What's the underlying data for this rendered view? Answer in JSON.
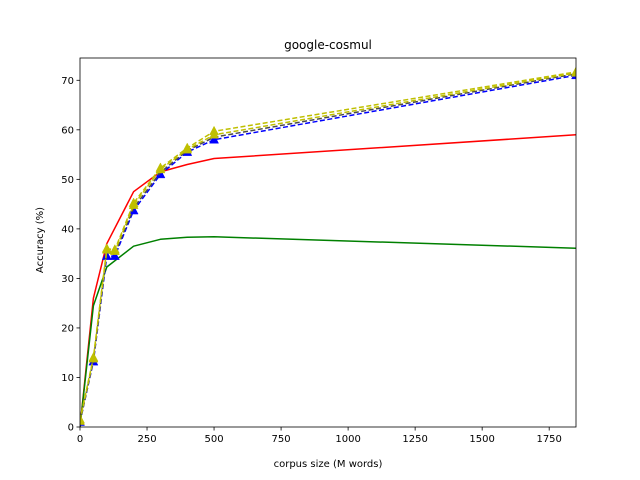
{
  "chart_data": {
    "type": "line",
    "title": "google-cosmul",
    "xlabel": "corpus size (M words)",
    "ylabel": "Accuracy (%)",
    "xlim": [
      0,
      1850
    ],
    "ylim": [
      0,
      74.5
    ],
    "xticks": [
      0,
      250,
      500,
      750,
      1000,
      1250,
      1500,
      1750
    ],
    "yticks": [
      0,
      10,
      20,
      30,
      40,
      50,
      60,
      70
    ],
    "grid": false,
    "series": [
      {
        "color": "#ff0000",
        "style": "solid",
        "marker": "none",
        "x": [
          0,
          50,
          100,
          200,
          300,
          400,
          500,
          1850
        ],
        "y": [
          0,
          26,
          37,
          47.5,
          51.5,
          53,
          54.2,
          59
        ]
      },
      {
        "color": "#008000",
        "style": "solid",
        "marker": "none",
        "x": [
          0,
          50,
          100,
          200,
          300,
          400,
          500,
          1850
        ],
        "y": [
          0,
          24.5,
          32.3,
          36.5,
          37.9,
          38.3,
          38.4,
          36.1
        ]
      },
      {
        "color": "#0000ff",
        "style": "dashed",
        "marker": "triangle",
        "x": [
          0,
          50,
          100,
          130,
          200,
          300,
          400,
          500,
          1850
        ],
        "y": [
          1,
          13.2,
          34.5,
          34.5,
          43.7,
          51,
          55.5,
          58,
          71
        ]
      },
      {
        "color": "#4b4b4b",
        "style": "dashed",
        "marker": "none",
        "x": [
          0,
          50,
          100,
          130,
          200,
          300,
          400,
          500,
          1850
        ],
        "y": [
          1,
          13.5,
          35.2,
          35,
          44.2,
          51.4,
          55.8,
          58.5,
          71.3
        ]
      },
      {
        "color": "#bfbf00",
        "style": "dashed",
        "marker": "triangle",
        "x": [
          0,
          50,
          100,
          130,
          200,
          300,
          400,
          500,
          1850
        ],
        "y": [
          1.2,
          13.8,
          35.8,
          35.5,
          44.8,
          52,
          56,
          59,
          71.5
        ]
      },
      {
        "color": "#bfbf00",
        "style": "dashed",
        "marker": "triangle",
        "x": [
          0,
          50,
          100,
          130,
          200,
          300,
          400,
          500,
          1850
        ],
        "y": [
          1.5,
          14,
          36,
          35.8,
          45.2,
          52.3,
          56.3,
          59.7,
          71.7
        ]
      }
    ]
  }
}
